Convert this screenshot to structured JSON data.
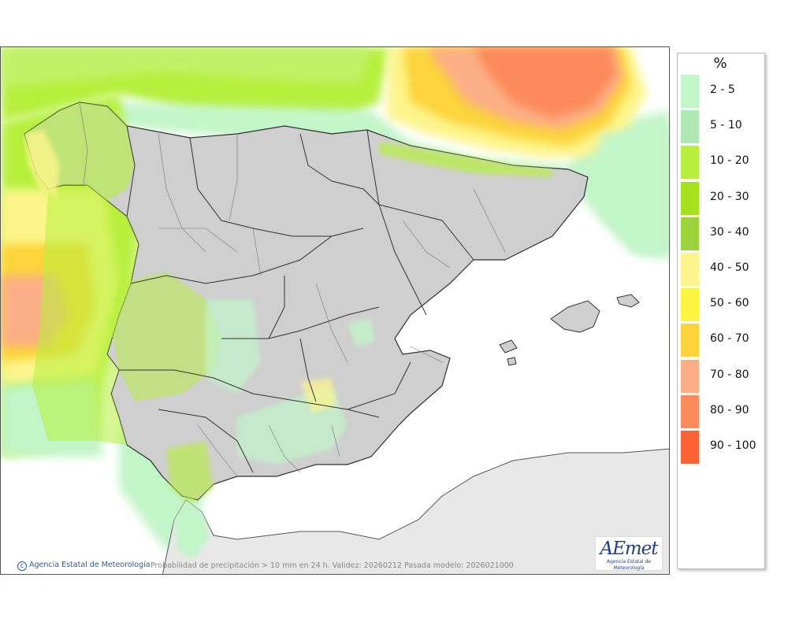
{
  "legend": {
    "unit": "%",
    "classes": [
      {
        "label": "2 - 5",
        "color": "#c2f5c8"
      },
      {
        "label": "5 - 10",
        "color": "#b0e8b4"
      },
      {
        "label": "10 - 20",
        "color": "#b6f03c"
      },
      {
        "label": "20 - 30",
        "color": "#a6e11b"
      },
      {
        "label": "30 - 40",
        "color": "#9cd33b"
      },
      {
        "label": "40 - 50",
        "color": "#fdf58c"
      },
      {
        "label": "50 - 60",
        "color": "#fbf33e"
      },
      {
        "label": "60 - 70",
        "color": "#fcd43a"
      },
      {
        "label": "70 - 80",
        "color": "#fcaf86"
      },
      {
        "label": "80 - 90",
        "color": "#fc8a5a"
      },
      {
        "label": "90 - 100",
        "color": "#fc6232"
      }
    ]
  },
  "footer": {
    "credit_icon": "C",
    "credit": "Agencia Estatal de Meteorología",
    "caption": "Probabilidad de precipitación > 10 mm en 24 h. Validez: 20260212 Pasada modelo: 2026021000"
  },
  "logo": {
    "word": "AEmet",
    "subtitle": "Agencia Estatal de Meteorología"
  },
  "colors": {
    "sea": "#ffffff",
    "land": "#cfcfcf",
    "africa": "#e8e8e8",
    "border": "#303030"
  }
}
